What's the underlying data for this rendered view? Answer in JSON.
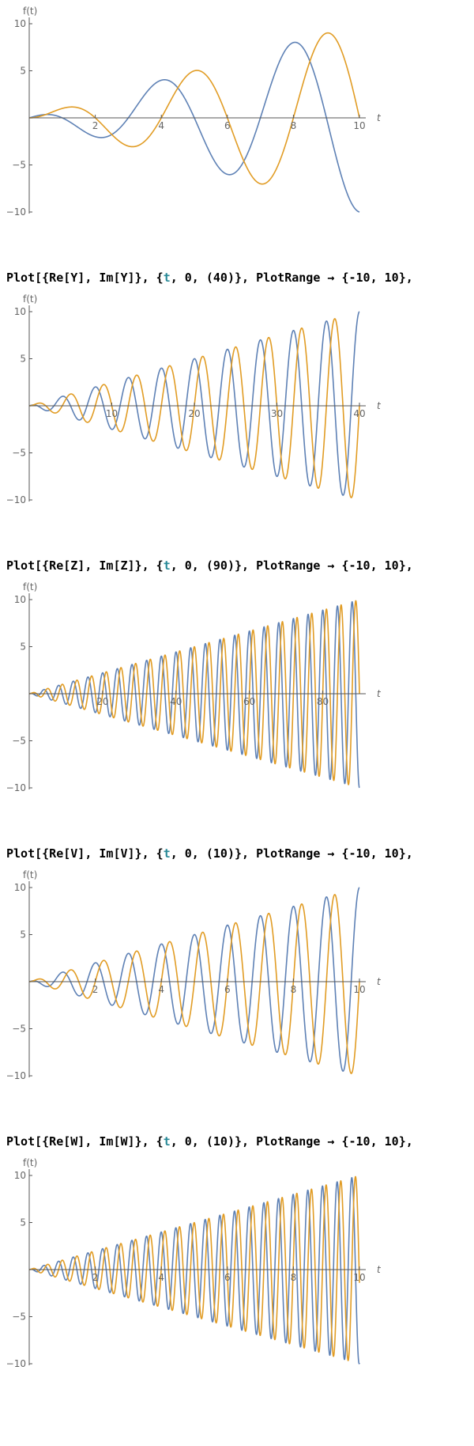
{
  "commands": [
    {
      "head": "Plot[{Re[Y], Im[Y]}, {",
      "tvar": "t",
      "tail": ", 0, (40)}, PlotRange → {-10, 10},"
    },
    {
      "head": "Plot[{Re[Z], Im[Z]}, {",
      "tvar": "t",
      "tail": ", 0, (90)}, PlotRange → {-10, 10},"
    },
    {
      "head": "Plot[{Re[V], Im[V]}, {",
      "tvar": "t",
      "tail": ", 0, (10)}, PlotRange → {-10, 10},"
    },
    {
      "head": "Plot[{Re[W], Im[W]}, {",
      "tvar": "t",
      "tail": ", 0, (10)}, PlotRange → {-10, 10},"
    }
  ],
  "colors": {
    "re": "#5e81b5",
    "im": "#e19c24",
    "axis": "#555555"
  },
  "chart_data": [
    {
      "type": "line",
      "xlabel": "t",
      "ylabel": "f(t)",
      "xlim": [
        0,
        10
      ],
      "ylim": [
        -10,
        10
      ],
      "xticks": [
        2,
        4,
        6,
        8,
        10
      ],
      "yticks": [
        -10,
        -5,
        5,
        10
      ],
      "grid": false,
      "model": {
        "amp_per_x": 1.0,
        "period": 4.0
      },
      "series": [
        {
          "name": "",
          "values": "Re"
        },
        {
          "name": "",
          "values": "Im"
        }
      ]
    },
    {
      "type": "line",
      "xlabel": "t",
      "ylabel": "f(t)",
      "xlim": [
        0,
        40
      ],
      "ylim": [
        -10,
        10
      ],
      "xticks": [
        10,
        20,
        30,
        40
      ],
      "yticks": [
        -10,
        -5,
        5,
        10
      ],
      "grid": false,
      "model": {
        "amp_per_x": 0.25,
        "period": 4.0
      },
      "series": [
        {
          "name": "",
          "values": "Re"
        },
        {
          "name": "",
          "values": "Im"
        }
      ]
    },
    {
      "type": "line",
      "xlabel": "t",
      "ylabel": "f(t)",
      "xlim": [
        0,
        90
      ],
      "ylim": [
        -10,
        10
      ],
      "xticks": [
        20,
        40,
        60,
        80
      ],
      "yticks": [
        -10,
        -5,
        5,
        10
      ],
      "grid": false,
      "model": {
        "amp_per_x": 0.111,
        "period": 4.0
      },
      "series": [
        {
          "name": "",
          "values": "Re"
        },
        {
          "name": "",
          "values": "Im"
        }
      ]
    },
    {
      "type": "line",
      "xlabel": "t",
      "ylabel": "f(t)",
      "xlim": [
        0,
        10
      ],
      "ylim": [
        -10,
        10
      ],
      "xticks": [
        2,
        4,
        6,
        8,
        10
      ],
      "yticks": [
        -10,
        -5,
        5,
        10
      ],
      "grid": false,
      "model": {
        "amp_per_x": 1.0,
        "period": 1.0
      },
      "series": [
        {
          "name": "",
          "values": "Re"
        },
        {
          "name": "",
          "values": "Im"
        }
      ]
    },
    {
      "type": "line",
      "xlabel": "t",
      "ylabel": "f(t)",
      "xlim": [
        0,
        10
      ],
      "ylim": [
        -10,
        10
      ],
      "xticks": [
        2,
        4,
        6,
        8,
        10
      ],
      "yticks": [
        -10,
        -5,
        5,
        10
      ],
      "grid": false,
      "model": {
        "amp_per_x": 1.0,
        "period": 0.444
      },
      "series": [
        {
          "name": "",
          "values": "Re"
        },
        {
          "name": "",
          "values": "Im"
        }
      ]
    }
  ]
}
